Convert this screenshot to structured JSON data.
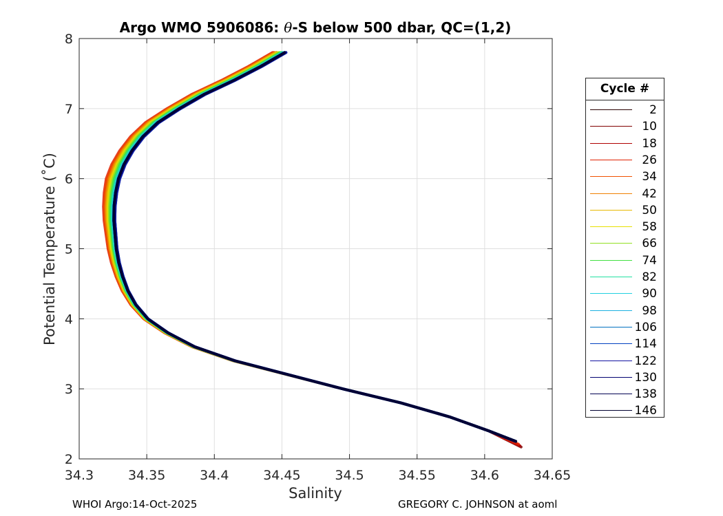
{
  "chart_data": {
    "type": "line",
    "title": "Argo WMO 5906086: θ-S below 500 dbar,  QC=(1,2)",
    "title_prefix": "Argo WMO 5906086: ",
    "title_theta": "θ",
    "title_suffix": "-S below 500 dbar,  QC=(1,2)",
    "xlabel": "Salinity",
    "ylabel": "Potential Temperature (˚C)",
    "xlim": [
      34.3,
      34.65
    ],
    "ylim": [
      2,
      8
    ],
    "x_ticks": [
      "34.3",
      "34.35",
      "34.4",
      "34.45",
      "34.5",
      "34.55",
      "34.6",
      "34.65"
    ],
    "y_ticks": [
      "2",
      "3",
      "4",
      "5",
      "6",
      "7",
      "8"
    ],
    "grid": true,
    "legend_position": "outside-right",
    "legend_title": "Cycle #",
    "series": [
      {
        "name": "2",
        "color": "#2a0000",
        "dS": 0.0,
        "ext": 0.0
      },
      {
        "name": "10",
        "color": "#800000",
        "dS": -0.004,
        "ext": 0.004
      },
      {
        "name": "18",
        "color": "#b00000",
        "dS": -0.006,
        "ext": 0.003
      },
      {
        "name": "26",
        "color": "#e02000",
        "dS": -0.007,
        "ext": 0.002
      },
      {
        "name": "34",
        "color": "#f05000",
        "dS": -0.006,
        "ext": 0.0
      },
      {
        "name": "42",
        "color": "#f08000",
        "dS": -0.005,
        "ext": 0.0
      },
      {
        "name": "50",
        "color": "#e8b800",
        "dS": -0.004,
        "ext": 0.0
      },
      {
        "name": "58",
        "color": "#e8e000",
        "dS": -0.003,
        "ext": 0.0
      },
      {
        "name": "66",
        "color": "#90e020",
        "dS": -0.002,
        "ext": 0.0
      },
      {
        "name": "74",
        "color": "#40e040",
        "dS": -0.001,
        "ext": 0.0
      },
      {
        "name": "82",
        "color": "#20e0a0",
        "dS": 0.0,
        "ext": 0.0
      },
      {
        "name": "90",
        "color": "#20d0e0",
        "dS": 0.001,
        "ext": 0.0
      },
      {
        "name": "98",
        "color": "#1ab0e0",
        "dS": 0.002,
        "ext": 0.0
      },
      {
        "name": "106",
        "color": "#0070c0",
        "dS": 0.003,
        "ext": 0.0
      },
      {
        "name": "114",
        "color": "#0040c0",
        "dS": 0.003,
        "ext": 0.0
      },
      {
        "name": "122",
        "color": "#1010a0",
        "dS": 0.003,
        "ext": 0.0
      },
      {
        "name": "130",
        "color": "#000070",
        "dS": 0.002,
        "ext": 0.0
      },
      {
        "name": "138",
        "color": "#000050",
        "dS": 0.002,
        "ext": 0.0
      },
      {
        "name": "146",
        "color": "#000030",
        "dS": 0.002,
        "ext": 0.0
      }
    ],
    "base_profile": {
      "theta": [
        7.8,
        7.6,
        7.4,
        7.2,
        7.0,
        6.8,
        6.6,
        6.4,
        6.2,
        6.0,
        5.8,
        5.6,
        5.4,
        5.2,
        5.0,
        4.8,
        4.6,
        4.4,
        4.2,
        4.0,
        3.8,
        3.6,
        3.4,
        3.2,
        3.0,
        2.8,
        2.6,
        2.4,
        2.25
      ],
      "salinity": [
        34.45,
        34.432,
        34.412,
        34.39,
        34.372,
        34.356,
        34.345,
        34.337,
        34.331,
        34.327,
        34.325,
        34.324,
        34.324,
        34.325,
        34.326,
        34.328,
        34.331,
        34.335,
        34.341,
        34.35,
        34.365,
        34.385,
        34.415,
        34.455,
        34.495,
        34.538,
        34.574,
        34.603,
        34.623
      ]
    }
  },
  "footer": {
    "left": "WHOI Argo:14-Oct-2025",
    "right": "GREGORY C. JOHNSON at aoml"
  }
}
